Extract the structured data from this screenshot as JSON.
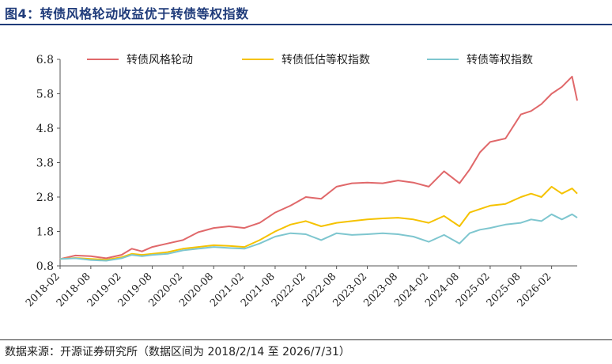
{
  "figure_title": "图4：转债风格轮动收益优于转债等权指数",
  "source_note": "数据来源：开源证券研究所（数据区间为 2018/2/14 至 2026/7/31）",
  "chart_data": {
    "type": "line",
    "ylim": [
      0.8,
      6.8
    ],
    "yticks": [
      "0.8",
      "1.8",
      "2.8",
      "3.8",
      "4.8",
      "5.8",
      "6.8"
    ],
    "xticks": [
      "2018-02",
      "2018-08",
      "2019-02",
      "2019-08",
      "2020-02",
      "2020-08",
      "2021-02",
      "2021-08",
      "2022-02",
      "2022-08",
      "2023-02",
      "2023-08",
      "2024-02",
      "2024-08",
      "2025-02",
      "2025-08",
      "2026-02"
    ],
    "x": [
      "2018-02",
      "2018-05",
      "2018-08",
      "2018-11",
      "2019-02",
      "2019-04",
      "2019-06",
      "2019-08",
      "2019-11",
      "2020-02",
      "2020-05",
      "2020-08",
      "2020-11",
      "2021-02",
      "2021-05",
      "2021-08",
      "2021-11",
      "2022-02",
      "2022-05",
      "2022-08",
      "2022-11",
      "2023-02",
      "2023-05",
      "2023-08",
      "2023-11",
      "2024-02",
      "2024-05",
      "2024-08",
      "2024-10",
      "2024-12",
      "2025-02",
      "2025-05",
      "2025-08",
      "2025-10",
      "2025-12",
      "2026-02",
      "2026-04",
      "2026-06",
      "2026-07"
    ],
    "grid": false,
    "legend_position": "top",
    "series": [
      {
        "name": "转债风格轮动",
        "color": "#e0686a",
        "values": [
          1.0,
          1.1,
          1.08,
          1.02,
          1.12,
          1.3,
          1.22,
          1.35,
          1.45,
          1.55,
          1.78,
          1.9,
          1.95,
          1.9,
          2.05,
          2.35,
          2.55,
          2.8,
          2.75,
          3.1,
          3.2,
          3.22,
          3.2,
          3.28,
          3.22,
          3.1,
          3.55,
          3.2,
          3.6,
          4.1,
          4.4,
          4.5,
          5.2,
          5.3,
          5.5,
          5.8,
          6.0,
          6.3,
          5.6
        ]
      },
      {
        "name": "转债低估等权指数",
        "color": "#f5c200",
        "values": [
          1.0,
          1.03,
          1.0,
          0.98,
          1.05,
          1.15,
          1.12,
          1.15,
          1.2,
          1.3,
          1.35,
          1.4,
          1.38,
          1.35,
          1.55,
          1.8,
          2.0,
          2.1,
          1.95,
          2.05,
          2.1,
          2.15,
          2.18,
          2.2,
          2.15,
          2.05,
          2.25,
          1.95,
          2.35,
          2.45,
          2.55,
          2.6,
          2.8,
          2.9,
          2.8,
          3.1,
          2.9,
          3.05,
          2.9
        ]
      },
      {
        "name": "转债等权指数",
        "color": "#7ec6cf",
        "values": [
          1.0,
          1.02,
          0.97,
          0.95,
          1.02,
          1.12,
          1.08,
          1.12,
          1.15,
          1.25,
          1.3,
          1.35,
          1.32,
          1.3,
          1.45,
          1.65,
          1.75,
          1.72,
          1.55,
          1.75,
          1.7,
          1.72,
          1.75,
          1.72,
          1.65,
          1.5,
          1.7,
          1.45,
          1.75,
          1.85,
          1.9,
          2.0,
          2.05,
          2.15,
          2.1,
          2.3,
          2.15,
          2.3,
          2.2
        ]
      }
    ]
  }
}
